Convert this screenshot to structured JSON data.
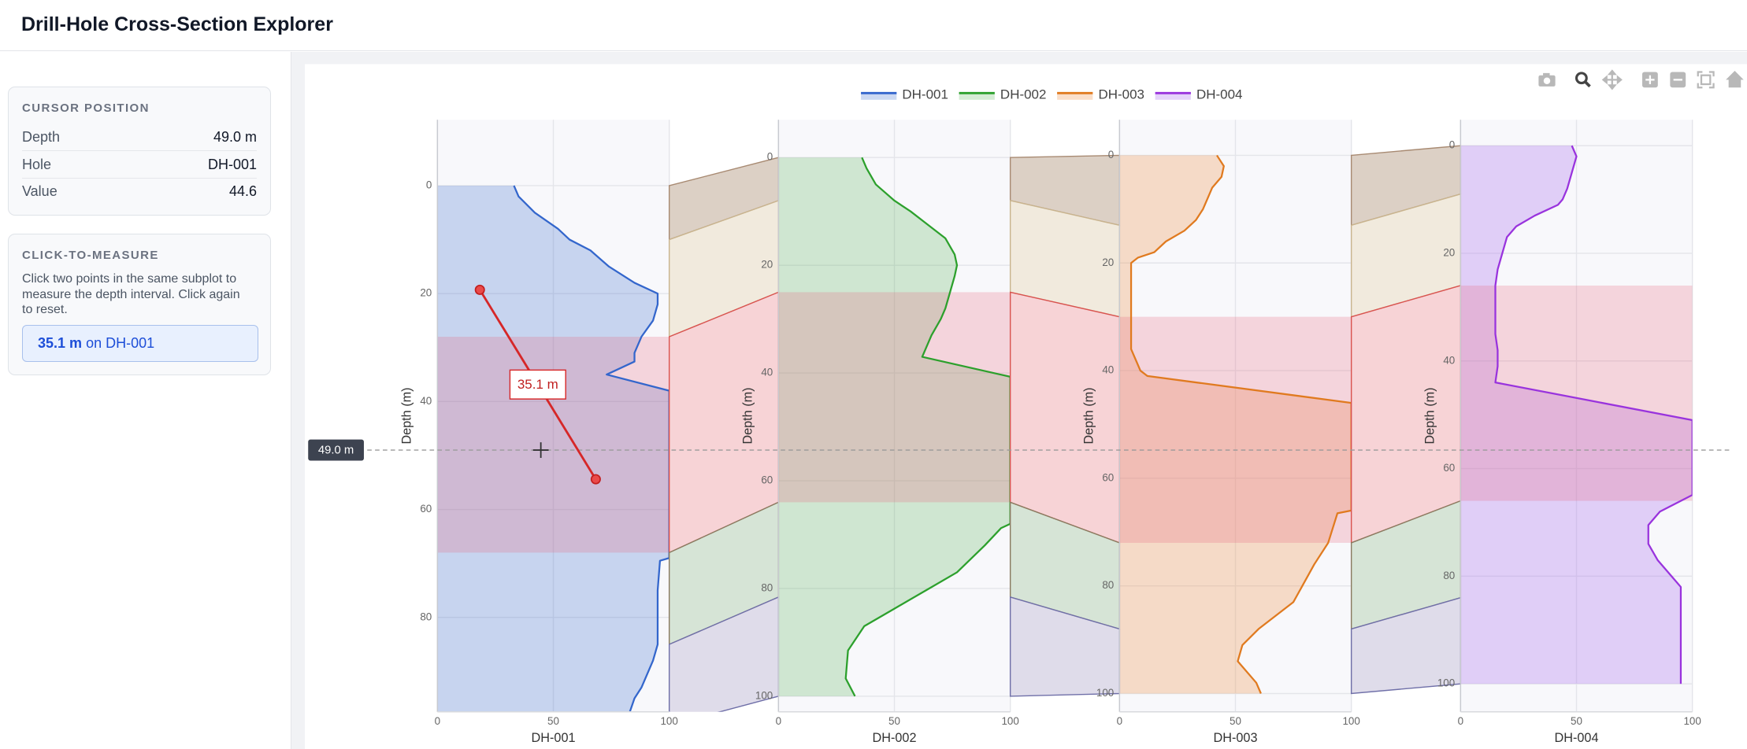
{
  "header": {
    "title": "Drill-Hole Cross-Section Explorer"
  },
  "sidebar": {
    "cursor_panel": {
      "heading": "CURSOR POSITION",
      "rows": [
        [
          "Depth",
          "49.0 m"
        ],
        [
          "Hole",
          "DH-001"
        ],
        [
          "Value",
          "44.6"
        ]
      ]
    },
    "measure_panel": {
      "heading": "CLICK-TO-MEASURE",
      "text": "Click two points in the same subplot to measure the depth interval. Click again to reset.",
      "result": {
        "value": "35.1 m",
        "hole": "on DH-001"
      }
    }
  },
  "chart_data": {
    "type": "depth-profile",
    "y_label": "Depth (m)",
    "xlim": [
      0,
      100
    ],
    "xticks": [
      0,
      50,
      100
    ],
    "yaxis_reversed": true,
    "grid": true,
    "highlight_layer": 2,
    "layers": [
      {
        "color": "#dcd0c5",
        "line": "#a88a72"
      },
      {
        "color": "#f1eadd",
        "line": "#c9b48e"
      },
      {
        "color": "#f7d3d6",
        "line": "#d9534f"
      },
      {
        "color": "#d6e4d6",
        "line": "#8a7a60"
      },
      {
        "color": "#dfdcea",
        "line": "#6f6fa8"
      }
    ],
    "holes": [
      {
        "name": "DH-001",
        "color": "#3366cc",
        "fill": "rgba(51,102,204,0.25)",
        "ylim": [
          -12.2,
          97.5
        ],
        "yticks": [
          0,
          20,
          40,
          60,
          80
        ],
        "boundaries": [
          0,
          10,
          28,
          68,
          85,
          100
        ],
        "depth": [
          0,
          2,
          5,
          8,
          10,
          12,
          15,
          18,
          20,
          22,
          25,
          28,
          31,
          32.6,
          35,
          38,
          40,
          50,
          60,
          69,
          69.5,
          75,
          85,
          88,
          90,
          93,
          95,
          97.5
        ],
        "values": [
          33,
          35,
          42,
          52,
          57,
          66,
          74,
          85,
          95,
          95,
          93,
          88,
          85,
          85,
          73,
          100,
          100,
          100,
          100,
          100,
          96,
          95,
          95,
          93,
          91,
          88,
          85,
          83
        ]
      },
      {
        "name": "DH-002",
        "color": "#2ca02c",
        "fill": "rgba(44,160,44,0.2)",
        "ylim": [
          -7.0,
          102.9
        ],
        "yticks": [
          0,
          20,
          40,
          60,
          80,
          100
        ],
        "boundaries": [
          0,
          8,
          25,
          64,
          81.6,
          100
        ],
        "depth": [
          0,
          2,
          5,
          8,
          10,
          12,
          15,
          18,
          20,
          22,
          25,
          28,
          30,
          33,
          37,
          40.7,
          50,
          60,
          68,
          68.8,
          72,
          77,
          80,
          84,
          87,
          91.5,
          96.7,
          100
        ],
        "values": [
          36,
          38,
          42,
          50,
          57,
          63,
          72,
          76,
          77,
          76,
          74,
          72,
          70,
          66,
          62,
          100,
          100,
          100,
          100,
          96,
          89,
          77,
          65,
          49,
          37,
          30,
          29,
          33
        ]
      },
      {
        "name": "DH-003",
        "color": "#e07a1f",
        "fill": "rgba(240,150,80,0.3)",
        "ylim": [
          -6.6,
          103.4
        ],
        "yticks": [
          0,
          20,
          40,
          60,
          80,
          100
        ],
        "boundaries": [
          0,
          13,
          30,
          72,
          88,
          100
        ],
        "depth": [
          0,
          2,
          4,
          6,
          8,
          10,
          12,
          14,
          16,
          18,
          19,
          20,
          25,
          30,
          36,
          37,
          38,
          40,
          41,
          46,
          55,
          66,
          66.5,
          72,
          76,
          83,
          88,
          91,
          94,
          98,
          100
        ],
        "values": [
          42,
          45,
          44,
          40,
          38,
          36,
          33,
          28,
          20,
          15,
          8,
          5,
          5,
          5,
          5,
          6,
          7,
          9,
          12,
          100,
          100,
          100,
          94,
          90,
          84,
          75,
          60,
          53,
          51,
          59,
          61
        ]
      },
      {
        "name": "DH-004",
        "color": "#9933dd",
        "fill": "rgba(170,110,240,0.3)",
        "ylim": [
          -4.8,
          105.2
        ],
        "yticks": [
          0,
          20,
          40,
          60,
          80,
          100
        ],
        "boundaries": [
          0,
          9,
          26,
          66,
          84,
          100
        ],
        "depth": [
          0,
          2,
          5,
          8,
          10,
          11,
          13,
          15,
          17,
          20,
          23,
          26,
          30,
          35,
          38,
          41,
          44,
          51,
          58,
          64.9,
          68,
          70.5,
          74,
          77,
          80,
          82,
          90,
          100
        ],
        "values": [
          48,
          50,
          48,
          46,
          44,
          42,
          32,
          24,
          20,
          18,
          16,
          15,
          15,
          15,
          16,
          16,
          15,
          100,
          100,
          100,
          86,
          81,
          81,
          85,
          91,
          95,
          95,
          95
        ]
      }
    ],
    "cursor": {
      "hole": 0,
      "depth": 49.0,
      "value": 44.6,
      "label": "49.0 m"
    },
    "measure": {
      "hole": 0,
      "points": [
        {
          "value": 18.3,
          "depth": 19.3
        },
        {
          "value": 68.3,
          "depth": 54.4
        }
      ],
      "label": "35.1 m"
    }
  }
}
